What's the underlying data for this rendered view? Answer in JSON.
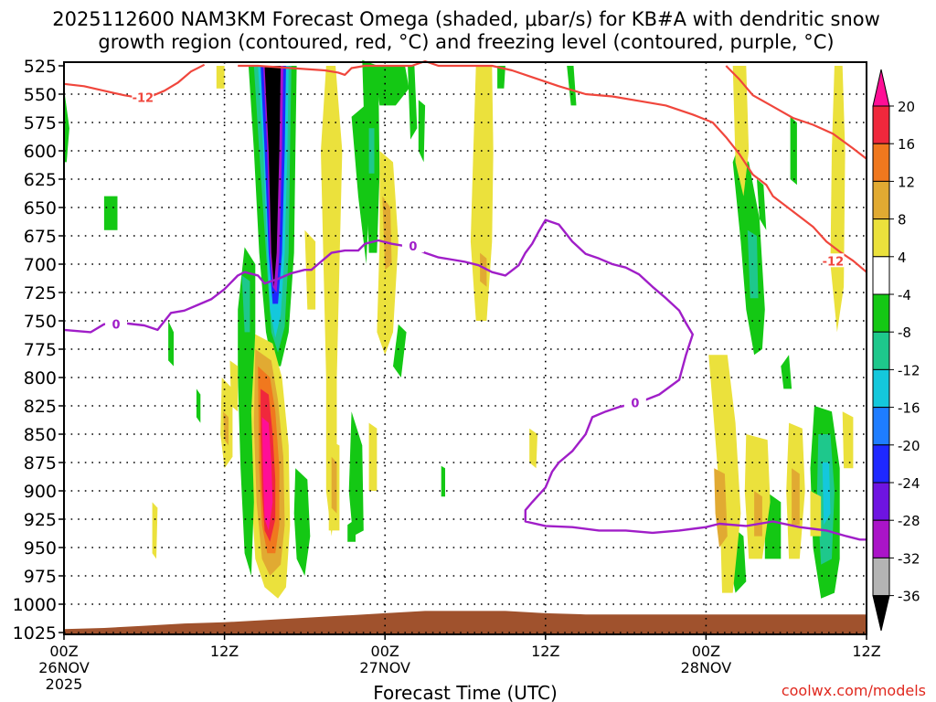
{
  "chart_data": {
    "type": "heatmap",
    "title_line1": "2025112600 NAM3KM Forecast Omega (shaded, μbar/s) for KB#A with dendritic snow",
    "title_line2": "growth region (contoured, red, °C) and freezing level (contoured, purple, °C)",
    "xlabel": "Forecast Time (UTC)",
    "credit": "coolwx.com/models",
    "y_ticks": [
      525,
      550,
      575,
      600,
      625,
      650,
      675,
      700,
      725,
      750,
      775,
      800,
      825,
      850,
      875,
      900,
      925,
      950,
      975,
      1000,
      1025
    ],
    "ylim": [
      525,
      1025
    ],
    "xlim": [
      0,
      60
    ],
    "x_ticks": [
      {
        "hour": 0,
        "lines": [
          "00Z",
          "26NOV",
          "2025"
        ]
      },
      {
        "hour": 12,
        "lines": [
          "12Z"
        ]
      },
      {
        "hour": 24,
        "lines": [
          "00Z",
          "27NOV"
        ]
      },
      {
        "hour": 36,
        "lines": [
          "12Z"
        ]
      },
      {
        "hour": 48,
        "lines": [
          "00Z",
          "28NOV"
        ]
      },
      {
        "hour": 60,
        "lines": [
          "12Z"
        ]
      }
    ],
    "colorbar": {
      "labels": [
        20,
        16,
        12,
        8,
        4,
        -4,
        -8,
        -12,
        -16,
        -20,
        -24,
        -28,
        -32,
        -36
      ],
      "colors": [
        "#ff0f96",
        "#f0283c",
        "#f0781e",
        "#e1aa32",
        "#ebe13c",
        "#ffffff",
        "#14c814",
        "#1ec88c",
        "#14c8dc",
        "#1e7dff",
        "#1e28ff",
        "#6e14e1",
        "#aa14c8",
        "#b4b4b4",
        "#000000"
      ],
      "top_arrow_color": "#ff0f96",
      "bottom_arrow_color": "#000000"
    },
    "contour_labels": {
      "dendritic_low": "-12",
      "freezing": "0"
    },
    "dendritic_line1": [
      [
        0,
        541
      ],
      [
        1.5,
        543
      ],
      [
        3,
        547
      ],
      [
        4.5,
        551
      ],
      [
        5.5,
        553
      ],
      [
        6.5,
        552
      ],
      [
        7.5,
        547
      ],
      [
        8.5,
        540
      ],
      [
        9.5,
        530
      ],
      [
        10.5,
        524
      ]
    ],
    "dendritic_line2": [
      [
        13,
        525
      ],
      [
        14.5,
        525
      ],
      [
        17,
        527
      ],
      [
        19.5,
        529
      ],
      [
        20.5,
        531
      ],
      [
        21,
        533
      ],
      [
        21.5,
        527
      ],
      [
        22.5,
        525
      ],
      [
        26,
        525
      ],
      [
        27,
        521
      ],
      [
        28,
        525
      ],
      [
        32,
        525
      ],
      [
        33.5,
        529
      ],
      [
        35,
        535
      ],
      [
        37,
        543
      ],
      [
        39,
        550
      ],
      [
        41,
        552
      ],
      [
        43,
        556
      ],
      [
        45,
        560
      ],
      [
        47,
        568
      ],
      [
        48.5,
        575
      ],
      [
        49.5,
        588
      ],
      [
        50.5,
        603
      ],
      [
        51.5,
        621
      ],
      [
        52.5,
        630
      ],
      [
        53,
        640
      ],
      [
        54,
        649
      ],
      [
        55,
        658
      ],
      [
        56,
        667
      ],
      [
        57,
        680
      ],
      [
        58,
        689
      ],
      [
        59,
        697
      ],
      [
        60,
        707
      ]
    ],
    "dendritic_line3": [
      [
        49.5,
        525
      ],
      [
        50.5,
        537
      ],
      [
        51.5,
        551
      ],
      [
        53,
        561
      ],
      [
        54.5,
        571
      ],
      [
        56,
        577
      ],
      [
        57.5,
        585
      ],
      [
        59,
        598
      ],
      [
        60,
        607
      ]
    ],
    "freezing_line": [
      [
        0,
        758
      ],
      [
        2,
        760
      ],
      [
        3,
        753
      ],
      [
        4.5,
        752
      ],
      [
        6,
        754
      ],
      [
        7,
        758
      ],
      [
        8,
        743
      ],
      [
        9,
        741
      ],
      [
        10,
        736
      ],
      [
        11,
        731
      ],
      [
        12,
        722
      ],
      [
        13,
        710
      ],
      [
        13.5,
        707
      ],
      [
        14.5,
        710
      ],
      [
        15,
        717
      ],
      [
        16,
        713
      ],
      [
        17,
        708
      ],
      [
        18,
        705
      ],
      [
        18.5,
        705
      ],
      [
        19,
        700
      ],
      [
        20,
        690
      ],
      [
        21,
        688
      ],
      [
        22,
        688
      ],
      [
        22.5,
        682
      ],
      [
        23.5,
        679
      ],
      [
        24.5,
        682
      ],
      [
        26,
        685
      ],
      [
        27,
        690
      ],
      [
        28,
        694
      ],
      [
        29,
        696
      ],
      [
        30,
        698
      ],
      [
        31,
        701
      ],
      [
        32,
        707
      ],
      [
        33,
        710
      ],
      [
        34,
        701
      ],
      [
        34.5,
        690
      ],
      [
        35,
        682
      ],
      [
        35.5,
        671
      ],
      [
        36,
        661
      ],
      [
        37,
        665
      ],
      [
        38,
        680
      ],
      [
        39,
        691
      ],
      [
        40,
        695
      ],
      [
        41,
        700
      ],
      [
        42,
        703
      ],
      [
        43,
        709
      ],
      [
        44,
        720
      ],
      [
        45,
        730
      ],
      [
        46,
        741
      ],
      [
        46.5,
        752
      ],
      [
        47,
        762
      ],
      [
        46.5,
        780
      ],
      [
        46,
        802
      ],
      [
        44.5,
        815
      ],
      [
        43,
        822
      ],
      [
        41.5,
        826
      ],
      [
        40.5,
        830
      ],
      [
        39.5,
        835
      ],
      [
        39,
        850
      ],
      [
        38,
        865
      ],
      [
        37,
        875
      ],
      [
        36.5,
        883
      ],
      [
        36,
        897
      ],
      [
        35,
        910
      ],
      [
        34.5,
        917
      ],
      [
        34.5,
        927
      ],
      [
        36,
        931
      ],
      [
        38,
        932
      ],
      [
        40,
        935
      ],
      [
        42,
        935
      ],
      [
        44,
        937
      ],
      [
        46,
        935
      ],
      [
        48,
        932
      ],
      [
        49,
        929
      ],
      [
        51,
        931
      ],
      [
        53,
        927
      ],
      [
        55,
        932
      ],
      [
        57,
        935
      ],
      [
        58.5,
        940
      ],
      [
        59.5,
        943
      ],
      [
        60,
        943
      ]
    ],
    "terrain_top": [
      [
        0,
        1022
      ],
      [
        3,
        1021
      ],
      [
        6,
        1019
      ],
      [
        9,
        1017
      ],
      [
        12,
        1016
      ],
      [
        15,
        1014
      ],
      [
        18,
        1012
      ],
      [
        21,
        1010
      ],
      [
        24,
        1008
      ],
      [
        27,
        1006
      ],
      [
        30,
        1006
      ],
      [
        33,
        1006
      ],
      [
        36,
        1008
      ],
      [
        39,
        1009
      ],
      [
        42,
        1009
      ],
      [
        45,
        1009
      ],
      [
        48,
        1009
      ],
      [
        51,
        1009
      ],
      [
        54,
        1009
      ],
      [
        57,
        1009
      ],
      [
        60,
        1009
      ]
    ]
  }
}
